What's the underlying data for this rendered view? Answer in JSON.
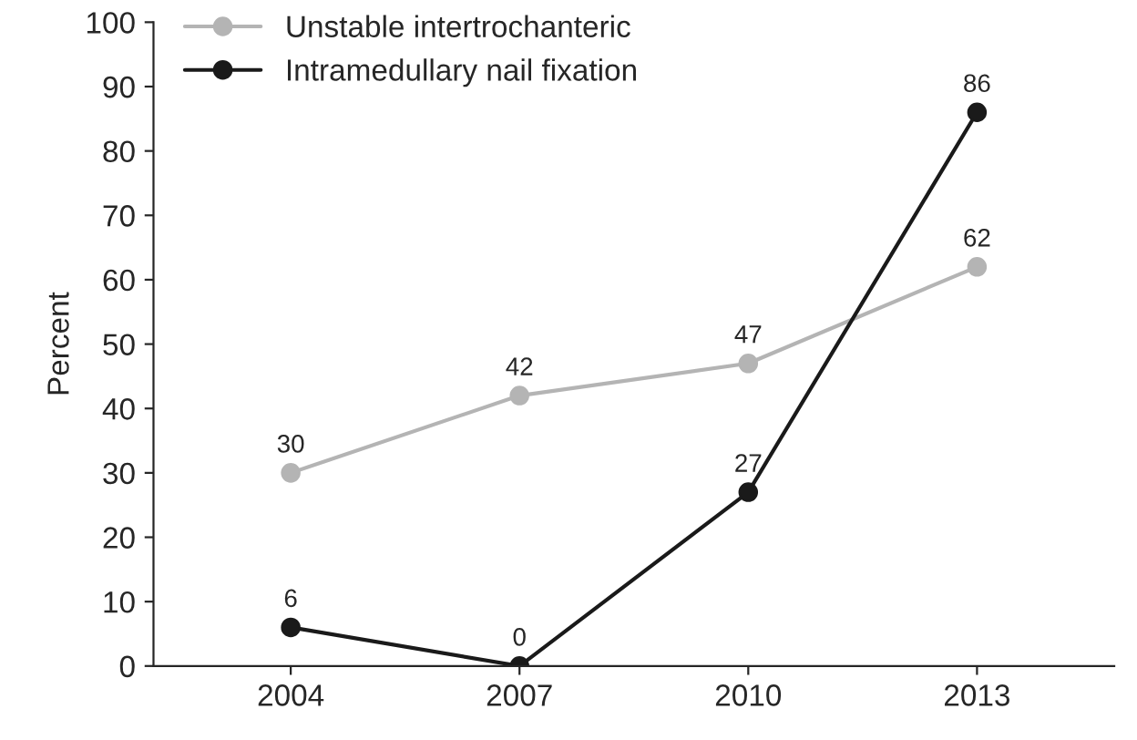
{
  "chart_data": {
    "type": "line",
    "ylabel": "Percent",
    "categories": [
      "2004",
      "2007",
      "2010",
      "2013"
    ],
    "series": [
      {
        "name": "Unstable intertrochanteric",
        "color": "#b4b4b4",
        "values": [
          30,
          42,
          47,
          62
        ]
      },
      {
        "name": "Intramedullary nail fixation",
        "color": "#1a1a1a",
        "values": [
          6,
          0,
          27,
          86
        ]
      }
    ],
    "ylim": [
      0,
      100
    ],
    "yticks": [
      0,
      10,
      20,
      30,
      40,
      50,
      60,
      70,
      80,
      90,
      100
    ],
    "data_labels": true,
    "legend": "top left",
    "marker": "circle",
    "line_style": "solid",
    "grid": false
  }
}
